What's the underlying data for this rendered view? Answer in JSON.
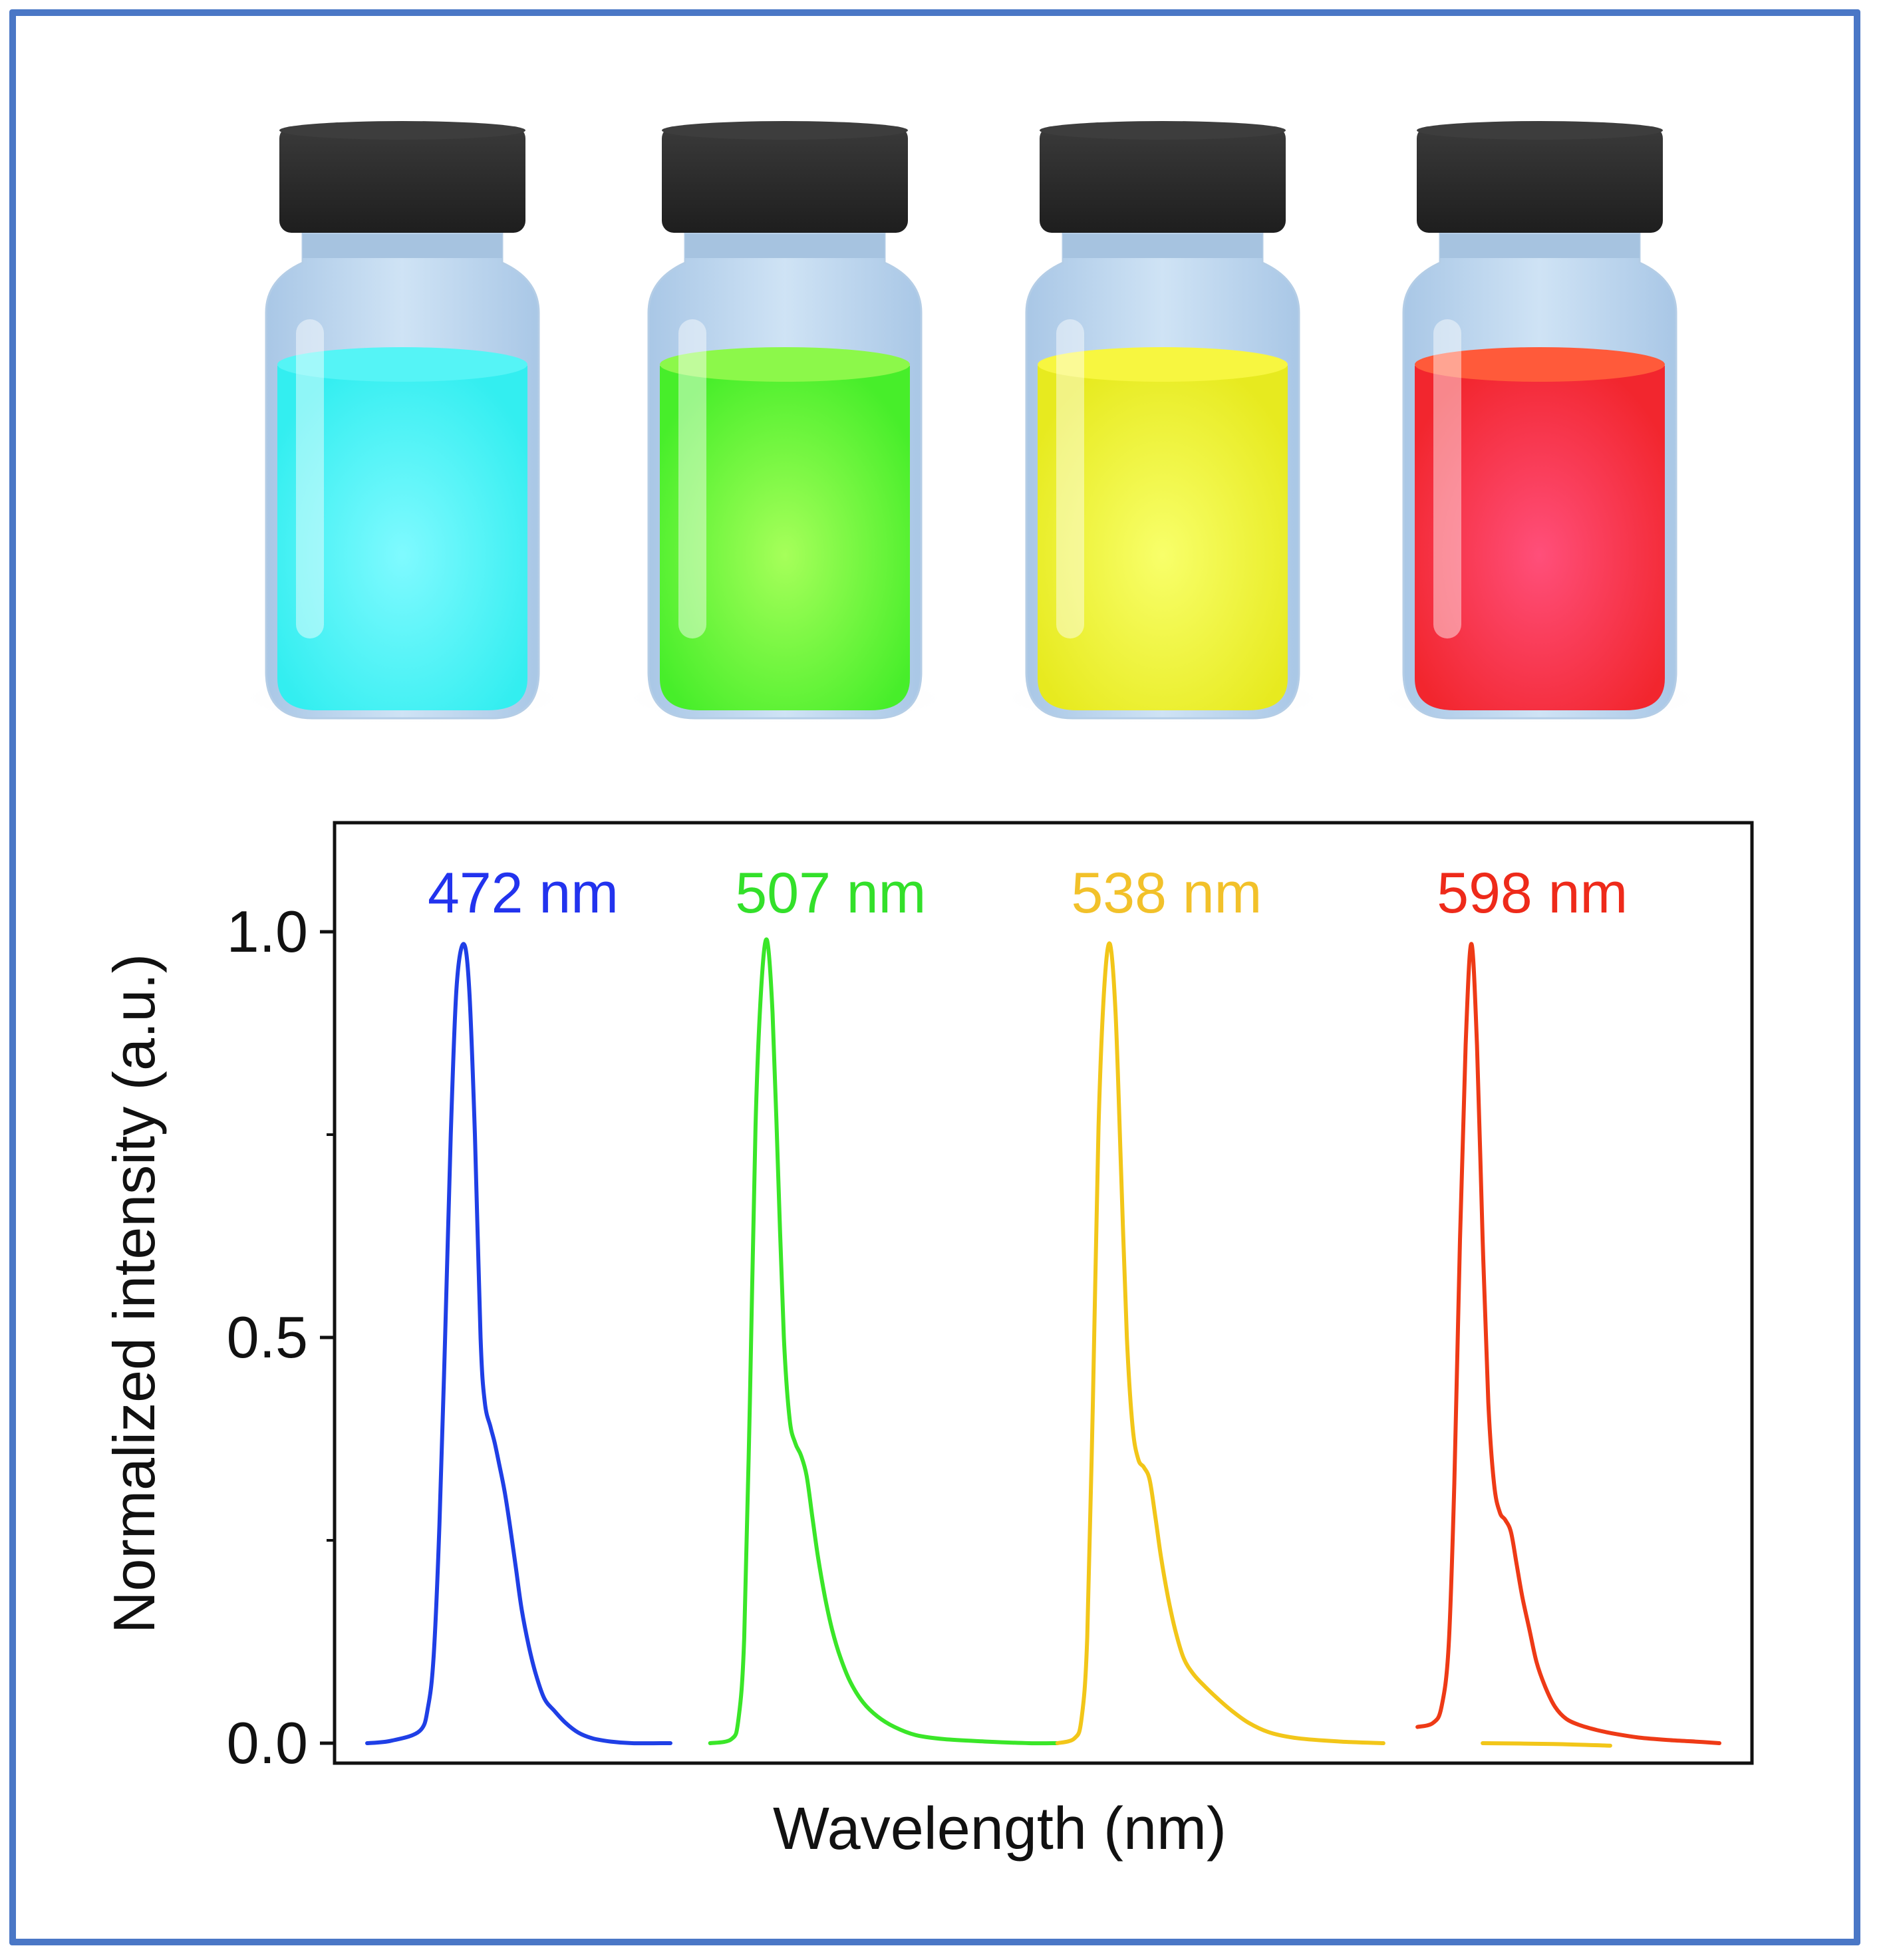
{
  "colors": {
    "border": "#4a77c6",
    "cap": "#262626",
    "glass": "#c2daf0"
  },
  "vials": [
    {
      "name": "cyan-vial",
      "liquid": "#33eef0",
      "liquid_top": "#55f4f6",
      "glow": "#7ffaff"
    },
    {
      "name": "green-vial",
      "liquid": "#47ee2a",
      "liquid_top": "#8cf84a",
      "glow": "#a6ff5a"
    },
    {
      "name": "yellow-vial",
      "liquid": "#e7ea1f",
      "liquid_top": "#f7f640",
      "glow": "#f8ff6a"
    },
    {
      "name": "red-vial",
      "liquid": "#f2262e",
      "liquid_top": "#ff5a3a",
      "glow": "#ff4f7a"
    }
  ],
  "chart_data": {
    "type": "line",
    "title": "",
    "xlabel": "Wavelength (nm)",
    "ylabel": "Normalized intensity (a.u.)",
    "ylim": [
      0.0,
      1.13
    ],
    "yticks": [
      0.0,
      0.5,
      1.0
    ],
    "ytick_labels": [
      "0.0",
      "0.5",
      "1.0"
    ],
    "yminor": [
      0.25,
      0.75
    ],
    "xticks_shown": false,
    "series": [
      {
        "name": "472 nm",
        "label": "472 nm",
        "color": "#1f3fe6",
        "label_color": "#2233ee",
        "x": [
          0.023,
          0.04,
          0.06,
          0.066,
          0.07,
          0.074,
          0.078,
          0.082,
          0.086,
          0.091,
          0.095,
          0.099,
          0.103,
          0.106,
          0.11,
          0.113,
          0.116,
          0.12,
          0.124,
          0.128,
          0.132,
          0.137,
          0.142,
          0.148,
          0.155,
          0.163,
          0.172,
          0.182,
          0.195,
          0.21,
          0.23,
          0.237
        ],
        "values": [
          0.0,
          0.003,
          0.015,
          0.045,
          0.11,
          0.27,
          0.5,
          0.75,
          0.93,
          0.985,
          0.93,
          0.75,
          0.5,
          0.42,
          0.39,
          0.37,
          0.345,
          0.31,
          0.265,
          0.215,
          0.165,
          0.12,
          0.085,
          0.055,
          0.04,
          0.025,
          0.013,
          0.006,
          0.002,
          0.0,
          0.0,
          0.0
        ]
      },
      {
        "name": "507 nm",
        "label": "507 nm",
        "color": "#3ae628",
        "label_color": "#33e02a",
        "x": [
          0.265,
          0.28,
          0.285,
          0.289,
          0.293,
          0.297,
          0.301,
          0.305,
          0.309,
          0.313,
          0.317,
          0.321,
          0.325,
          0.329,
          0.333,
          0.337,
          0.341,
          0.346,
          0.351,
          0.357,
          0.364,
          0.373,
          0.383,
          0.395,
          0.41,
          0.43,
          0.46,
          0.49,
          0.51
        ],
        "values": [
          0.0,
          0.005,
          0.03,
          0.13,
          0.42,
          0.76,
          0.93,
          0.99,
          0.9,
          0.7,
          0.5,
          0.4,
          0.37,
          0.355,
          0.33,
          0.28,
          0.23,
          0.18,
          0.14,
          0.105,
          0.075,
          0.05,
          0.033,
          0.02,
          0.01,
          0.005,
          0.002,
          0.0,
          0.0
        ]
      },
      {
        "name": "538 nm",
        "label": "538 nm",
        "color": "#f2c619",
        "label_color": "#f2c12a",
        "x": [
          0.51,
          0.522,
          0.527,
          0.531,
          0.535,
          0.539,
          0.543,
          0.547,
          0.551,
          0.555,
          0.559,
          0.563,
          0.567,
          0.571,
          0.575,
          0.579,
          0.583,
          0.588,
          0.593,
          0.599,
          0.606,
          0.614,
          0.623,
          0.633,
          0.645,
          0.66,
          0.68,
          0.71,
          0.74
        ],
        "values": [
          0.0,
          0.006,
          0.03,
          0.13,
          0.42,
          0.76,
          0.93,
          0.985,
          0.9,
          0.7,
          0.5,
          0.39,
          0.35,
          0.34,
          0.325,
          0.28,
          0.23,
          0.18,
          0.14,
          0.105,
          0.085,
          0.07,
          0.055,
          0.04,
          0.025,
          0.013,
          0.006,
          0.002,
          0.0
        ]
      },
      {
        "name": "598 nm",
        "label": "598 nm",
        "color": "#ee3a16",
        "label_color": "#ee2a1a",
        "x": [
          0.764,
          0.775,
          0.781,
          0.786,
          0.79,
          0.794,
          0.798,
          0.802,
          0.806,
          0.81,
          0.814,
          0.818,
          0.822,
          0.826,
          0.83,
          0.834,
          0.838,
          0.843,
          0.848,
          0.854,
          0.861,
          0.869,
          0.879,
          0.891,
          0.905,
          0.92,
          0.94,
          0.96,
          0.977
        ],
        "values": [
          0.02,
          0.025,
          0.045,
          0.12,
          0.32,
          0.62,
          0.86,
          0.985,
          0.86,
          0.62,
          0.42,
          0.32,
          0.285,
          0.275,
          0.26,
          0.22,
          0.18,
          0.14,
          0.1,
          0.07,
          0.045,
          0.03,
          0.022,
          0.016,
          0.011,
          0.007,
          0.004,
          0.002,
          0.0
        ]
      }
    ],
    "baseline_segment": {
      "color": "#f2c619",
      "x": [
        0.81,
        0.86,
        0.9
      ],
      "values": [
        0.0,
        -0.001,
        -0.003
      ]
    }
  }
}
